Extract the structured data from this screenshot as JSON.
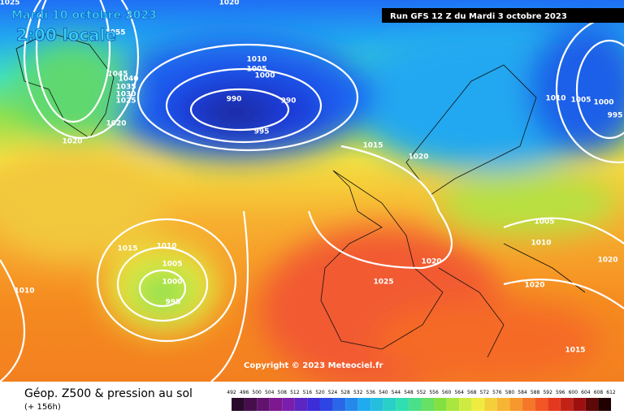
{
  "header": {
    "valid_date": "Mardi 10 octobre 2023",
    "local_time": "2:00 locale",
    "run": "Run GFS 12 Z du Mardi 3 octobre 2023"
  },
  "copyright": "Copyright © 2023 Meteociel.fr",
  "footer": {
    "title": "Géop. Z500 & pression au sol",
    "lead": "(+ 156h)"
  },
  "isobar_labels": [
    "1025",
    "1020",
    "1055",
    "1045",
    "1040",
    "1035",
    "1030",
    "1025",
    "1020",
    "1020",
    "1010",
    "1005",
    "1000",
    "990",
    "990",
    "995",
    "1015",
    "1020",
    "1010",
    "1005",
    "1000",
    "995",
    "1015",
    "1010",
    "1005",
    "1000",
    "995",
    "1010",
    "1025",
    "1020",
    "1005",
    "1010",
    "1020",
    "1020",
    "1015"
  ],
  "scale_labels": [
    "492",
    "496",
    "500",
    "504",
    "508",
    "512",
    "516",
    "520",
    "524",
    "528",
    "532",
    "536",
    "540",
    "544",
    "548",
    "552",
    "556",
    "560",
    "564",
    "568",
    "572",
    "576",
    "580",
    "584",
    "588",
    "592",
    "596",
    "600",
    "604",
    "608",
    "612"
  ]
}
